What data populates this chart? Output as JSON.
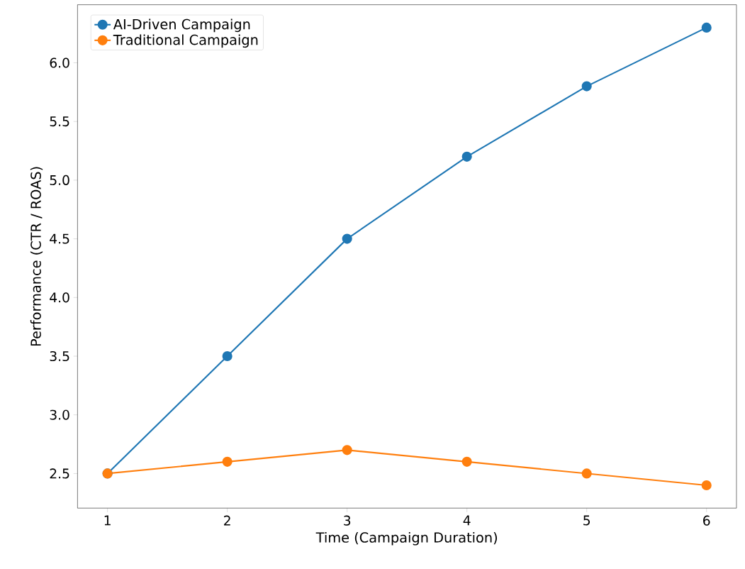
{
  "chart_data": {
    "type": "line",
    "xlabel": "Time (Campaign Duration)",
    "ylabel": "Performance (CTR / ROAS)",
    "x": [
      1,
      2,
      3,
      4,
      5,
      6
    ],
    "series": [
      {
        "name": "AI-Driven Campaign",
        "color": "#1f77b4",
        "values": [
          2.5,
          3.5,
          4.5,
          5.2,
          5.8,
          6.3
        ]
      },
      {
        "name": "Traditional Campaign",
        "color": "#ff7f0e",
        "values": [
          2.5,
          2.6,
          2.7,
          2.6,
          2.5,
          2.4
        ]
      }
    ],
    "xlim": [
      0.75,
      6.25
    ],
    "ylim": [
      2.205,
      6.495
    ],
    "xticks": [
      1,
      2,
      3,
      4,
      5,
      6
    ],
    "yticks": [
      {
        "value": 2.5,
        "label": "2.5"
      },
      {
        "value": 3.0,
        "label": "3.0"
      },
      {
        "value": 3.5,
        "label": "3.5"
      },
      {
        "value": 4.0,
        "label": "4.0"
      },
      {
        "value": 4.5,
        "label": "4.5"
      },
      {
        "value": 5.0,
        "label": "5.0"
      },
      {
        "value": 5.5,
        "label": "5.5"
      },
      {
        "value": 6.0,
        "label": "6.0"
      }
    ],
    "marker": "circle",
    "legend": "top left"
  }
}
